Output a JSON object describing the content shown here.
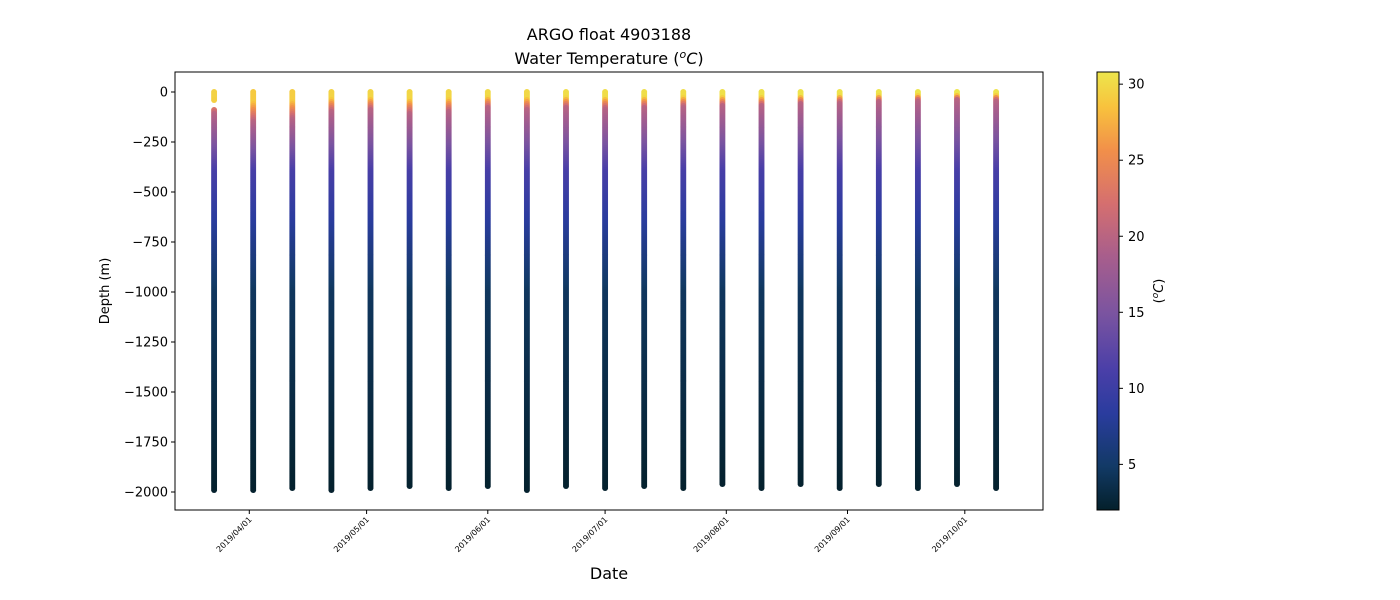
{
  "chart_data": {
    "type": "scatter",
    "title": "ARGO float 4903188",
    "subtitle_prefix": "Water Temperature (",
    "subtitle_unit_sup": "o",
    "subtitle_unit_main": "C",
    "subtitle_suffix": ")",
    "xlabel": "Date",
    "ylabel": "Depth (m)",
    "colorbar_label": "(oC)",
    "ylim": [
      -2090,
      100
    ],
    "xlim": [
      "2019-03-13",
      "2019-10-21"
    ],
    "y_ticks": [
      0,
      -250,
      -500,
      -750,
      -1000,
      -1250,
      -1500,
      -1750,
      -2000
    ],
    "x_ticks": [
      "2019/04/01",
      "2019/05/01",
      "2019/06/01",
      "2019/07/01",
      "2019/08/01",
      "2019/09/01",
      "2019/10/01"
    ],
    "colorbar_range": [
      2.0,
      30.8
    ],
    "colorbar_ticks": [
      5,
      10,
      15,
      20,
      25,
      30
    ],
    "colormap": "thermal",
    "grid": false,
    "profiles": [
      {
        "date": "2019-03-23",
        "min_depth": -1990,
        "surface_temp": 29.5,
        "gap": [
          -40,
          -90
        ],
        "thermocline_depth": -110
      },
      {
        "date": "2019-04-02",
        "min_depth": -1990,
        "surface_temp": 29.0,
        "thermocline_depth": -150
      },
      {
        "date": "2019-04-12",
        "min_depth": -1985,
        "surface_temp": 29.2,
        "thermocline_depth": -135
      },
      {
        "date": "2019-04-22",
        "min_depth": -1990,
        "surface_temp": 29.6,
        "thermocline_depth": -100
      },
      {
        "date": "2019-05-02",
        "min_depth": -1988,
        "surface_temp": 29.7,
        "thermocline_depth": -90
      },
      {
        "date": "2019-05-12",
        "min_depth": -1975,
        "surface_temp": 29.8,
        "thermocline_depth": -110
      },
      {
        "date": "2019-05-22",
        "min_depth": -1988,
        "surface_temp": 29.8,
        "thermocline_depth": -100
      },
      {
        "date": "2019-06-01",
        "min_depth": -1978,
        "surface_temp": 30.0,
        "thermocline_depth": -80
      },
      {
        "date": "2019-06-11",
        "min_depth": -1992,
        "surface_temp": 29.9,
        "thermocline_depth": -90
      },
      {
        "date": "2019-06-21",
        "min_depth": -1972,
        "surface_temp": 30.2,
        "thermocline_depth": -80
      },
      {
        "date": "2019-07-01",
        "min_depth": -1985,
        "surface_temp": 30.2,
        "thermocline_depth": -85
      },
      {
        "date": "2019-07-11",
        "min_depth": -1978,
        "surface_temp": 30.3,
        "thermocline_depth": -80
      },
      {
        "date": "2019-07-21",
        "min_depth": -1982,
        "surface_temp": 30.2,
        "thermocline_depth": -75
      },
      {
        "date": "2019-07-31",
        "min_depth": -1968,
        "surface_temp": 30.4,
        "thermocline_depth": -70
      },
      {
        "date": "2019-08-10",
        "min_depth": -1982,
        "surface_temp": 30.5,
        "thermocline_depth": -70
      },
      {
        "date": "2019-08-20",
        "min_depth": -1968,
        "surface_temp": 30.6,
        "thermocline_depth": -60
      },
      {
        "date": "2019-08-30",
        "min_depth": -1982,
        "surface_temp": 30.6,
        "thermocline_depth": -55
      },
      {
        "date": "2019-09-09",
        "min_depth": -1968,
        "surface_temp": 30.7,
        "thermocline_depth": -50
      },
      {
        "date": "2019-09-19",
        "min_depth": -1980,
        "surface_temp": 30.7,
        "thermocline_depth": -45
      },
      {
        "date": "2019-09-29",
        "min_depth": -1968,
        "surface_temp": 30.8,
        "thermocline_depth": -40
      },
      {
        "date": "2019-10-09",
        "min_depth": -1985,
        "surface_temp": 30.6,
        "thermocline_depth": -45
      }
    ]
  }
}
